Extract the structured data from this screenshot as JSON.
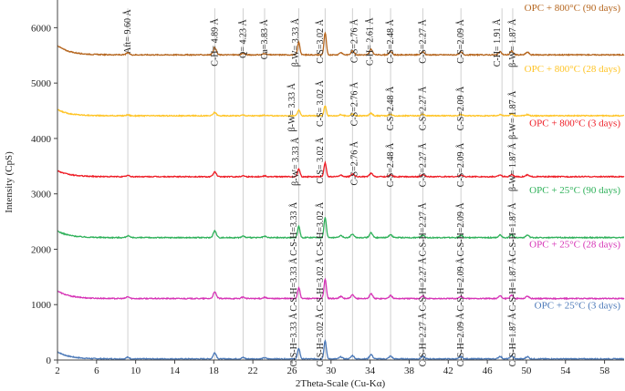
{
  "chart_data": {
    "type": "line",
    "title": "",
    "xlabel": "2Theta-Scale (Cu-Kα)",
    "ylabel": "Intensity (CpS)",
    "xlim": [
      2,
      60
    ],
    "ylim": [
      0,
      6500
    ],
    "xticks": [
      2,
      6,
      10,
      14,
      18,
      22,
      26,
      30,
      34,
      38,
      42,
      46,
      50,
      54,
      58
    ],
    "yticks": [
      0,
      1000,
      2000,
      3000,
      4000,
      5000,
      6000
    ],
    "grid": "off",
    "reference_lines_x": [
      9.2,
      18.1,
      21.0,
      23.2,
      26.7,
      29.4,
      32.2,
      34.0,
      36.1,
      39.4,
      43.3,
      47.5,
      48.6
    ],
    "series": [
      {
        "name": "OPC + 25°C (3 days)",
        "color": "#4a78b8",
        "baseline": 20,
        "label_y": 930,
        "start": 150,
        "peakScale": 1.0
      },
      {
        "name": "OPC + 25°C (28 days)",
        "color": "#d633b6",
        "baseline": 1110,
        "label_y": 2030,
        "start": 1250,
        "peakScale": 1.05
      },
      {
        "name": "OPC + 25°C (90 days)",
        "color": "#2fb15a",
        "baseline": 2210,
        "label_y": 3010,
        "start": 2330,
        "peakScale": 1.1
      },
      {
        "name": "OPC + 800°C (3 days)",
        "color": "#ee1c25",
        "baseline": 3310,
        "label_y": 4220,
        "start": 3420,
        "peakScale": 0.75
      },
      {
        "name": "OPC + 800°C (28 days)",
        "color": "#ffc425",
        "baseline": 4410,
        "label_y": 5200,
        "start": 4520,
        "peakScale": 0.55
      },
      {
        "name": "OPC + 800°C (90 days)",
        "color": "#b5651d",
        "baseline": 5510,
        "label_y": 6300,
        "start": 5680,
        "peakScale": 1.2
      }
    ],
    "peaks": [
      {
        "x": 9.2,
        "h": 30
      },
      {
        "x": 18.1,
        "h": 110
      },
      {
        "x": 21.0,
        "h": 25
      },
      {
        "x": 23.2,
        "h": 20
      },
      {
        "x": 26.7,
        "h": 190
      },
      {
        "x": 29.4,
        "h": 330
      },
      {
        "x": 31.0,
        "h": 35
      },
      {
        "x": 32.2,
        "h": 60
      },
      {
        "x": 34.1,
        "h": 80
      },
      {
        "x": 36.1,
        "h": 50
      },
      {
        "x": 39.4,
        "h": 45
      },
      {
        "x": 43.3,
        "h": 40
      },
      {
        "x": 47.3,
        "h": 45
      },
      {
        "x": 48.5,
        "h": 55
      },
      {
        "x": 50.1,
        "h": 40
      }
    ],
    "annotations": [
      {
        "text": "Aft= 9.60 Å",
        "x": 9.2,
        "y": 6330
      },
      {
        "text": "C-H= 4.89 Å",
        "x": 18.1,
        "y": 6170
      },
      {
        "text": "Q= 4.23 Å",
        "x": 21.0,
        "y": 6150
      },
      {
        "text": "Ca=3.83 Å",
        "x": 23.2,
        "y": 6150
      },
      {
        "text": "β-W= 3.33 Å",
        "x": 26.4,
        "y": 6170
      },
      {
        "text": "C-S=3.02 Å",
        "x": 28.9,
        "y": 6150
      },
      {
        "text": "C-S=2.76 Å",
        "x": 32.4,
        "y": 6160
      },
      {
        "text": "C-H= 2.61 Å",
        "x": 34.0,
        "y": 6180
      },
      {
        "text": "C-S=2.48 Å",
        "x": 36.1,
        "y": 6150
      },
      {
        "text": "C-S=2.27 Å",
        "x": 39.4,
        "y": 6150
      },
      {
        "text": "C-S=2.09 Å",
        "x": 43.3,
        "y": 6150
      },
      {
        "text": "C-H= 1.91 Å",
        "x": 47.0,
        "y": 6160
      },
      {
        "text": "β-W= 1.87 Å",
        "x": 48.6,
        "y": 6160
      },
      {
        "text": "β-W= 3.33 Å",
        "x": 26.0,
        "y": 5000
      },
      {
        "text": "C-S= 3.02 Å",
        "x": 28.9,
        "y": 5050
      },
      {
        "text": "C-S=2.76 Å",
        "x": 32.4,
        "y": 5020
      },
      {
        "text": "C-S=2.48 Å",
        "x": 36.1,
        "y": 4940
      },
      {
        "text": "C-S=2.27 Å",
        "x": 39.4,
        "y": 4940
      },
      {
        "text": "C-S=2.09 Å",
        "x": 43.3,
        "y": 4940
      },
      {
        "text": "β-W= 1.87 Å",
        "x": 48.6,
        "y": 4860
      },
      {
        "text": "β-W= 3.33 Å",
        "x": 26.4,
        "y": 4020
      },
      {
        "text": "C-S= 3.02 Å",
        "x": 28.9,
        "y": 4020
      },
      {
        "text": "C-S=2.76 Å",
        "x": 32.4,
        "y": 3950
      },
      {
        "text": "C-S=2.48 Å",
        "x": 36.1,
        "y": 3920
      },
      {
        "text": "C-S=2.27 Å",
        "x": 39.4,
        "y": 3920
      },
      {
        "text": "C-S=2.09 Å",
        "x": 43.3,
        "y": 3920
      },
      {
        "text": "β-W= 1.87 Å",
        "x": 48.6,
        "y": 3920
      },
      {
        "text": "C-S-H=3.33 Å",
        "x": 26.2,
        "y": 2850
      },
      {
        "text": "C-S-H=3.02 Å",
        "x": 28.9,
        "y": 2850
      },
      {
        "text": "C-S-H=2.27 Å",
        "x": 39.4,
        "y": 2840
      },
      {
        "text": "C-S-H=2.09 Å",
        "x": 43.3,
        "y": 2840
      },
      {
        "text": "C-S-H=1.87 Å",
        "x": 48.6,
        "y": 2840
      },
      {
        "text": "C-S-H=3.33 Å",
        "x": 26.2,
        "y": 1850
      },
      {
        "text": "C-S-H=3.02 Å",
        "x": 28.9,
        "y": 1850
      },
      {
        "text": "C-S-H=2.27 Å",
        "x": 39.4,
        "y": 1850
      },
      {
        "text": "C-S-H=2.09 Å",
        "x": 43.3,
        "y": 1850
      },
      {
        "text": "C-S-H=1.87 Å",
        "x": 48.6,
        "y": 1850
      },
      {
        "text": "C-S-H=3.33 Å",
        "x": 26.2,
        "y": 850
      },
      {
        "text": "C-S-H=3.02 Å",
        "x": 28.9,
        "y": 850
      },
      {
        "text": "C-S-H=2.27 Å",
        "x": 39.4,
        "y": 850
      },
      {
        "text": "C-S-H=2.09 Å",
        "x": 43.3,
        "y": 850
      },
      {
        "text": "C-S-H=1.87 Å",
        "x": 48.6,
        "y": 850
      }
    ]
  }
}
